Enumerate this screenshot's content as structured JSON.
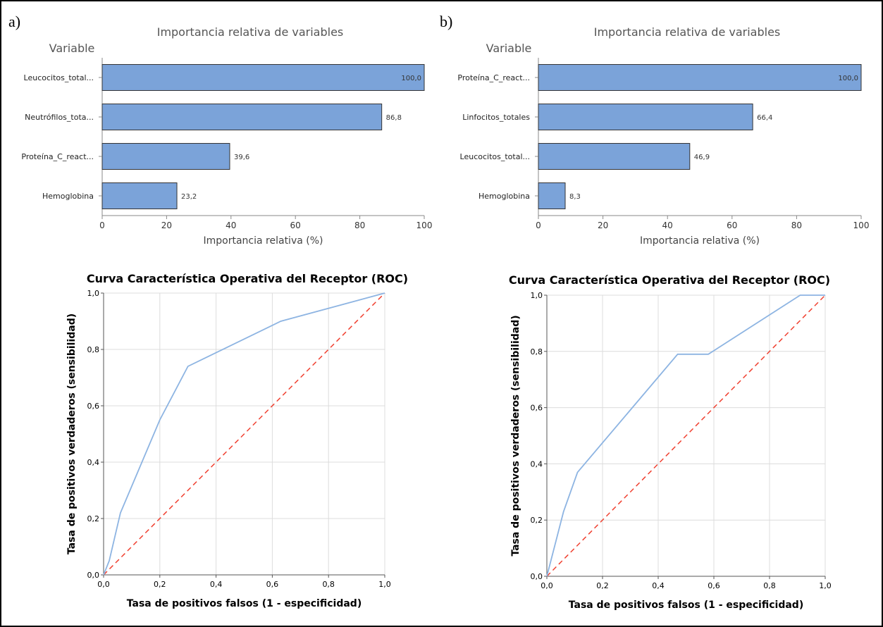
{
  "panels": [
    "a)",
    "b)"
  ],
  "colors": {
    "bar_fill": "#7ba3d9",
    "bar_stroke": "#333333",
    "roc_curve": "#8db4e2",
    "diagonal": "#f04030",
    "grid": "#dcdcdc"
  },
  "chart_data": [
    {
      "type": "bar",
      "orientation": "horizontal",
      "title": "Importancia relativa de variables",
      "ylabel": "Variable",
      "xlabel": "Importancia relativa (%)",
      "categories": [
        "Leucocitos_total...",
        "Neutrófilos_tota...",
        "Proteína_C_react...",
        "Hemoglobina"
      ],
      "values": [
        100.0,
        86.8,
        39.6,
        23.2
      ],
      "value_labels": [
        "100,0",
        "86,8",
        "39,6",
        "23,2"
      ],
      "xlim": [
        0,
        100
      ],
      "xticks": [
        "0",
        "20",
        "40",
        "60",
        "80",
        "100"
      ]
    },
    {
      "type": "bar",
      "orientation": "horizontal",
      "title": "Importancia relativa de variables",
      "ylabel": "Variable",
      "xlabel": "Importancia relativa (%)",
      "categories": [
        "Proteína_C_react...",
        "Linfocitos_totales",
        "Leucocitos_total...",
        "Hemoglobina"
      ],
      "values": [
        100.0,
        66.4,
        46.9,
        8.3
      ],
      "value_labels": [
        "100,0",
        "66,4",
        "46,9",
        "8,3"
      ],
      "xlim": [
        0,
        100
      ],
      "xticks": [
        "0",
        "20",
        "40",
        "60",
        "80",
        "100"
      ]
    },
    {
      "type": "line",
      "title": "Curva Característica Operativa del Receptor (ROC)",
      "xlabel": "Tasa de positivos falsos (1 - especificidad)",
      "ylabel": "Tasa de positivos verdaderos (sensibilidad)",
      "xlim": [
        0,
        1
      ],
      "ylim": [
        0,
        1
      ],
      "ticks": [
        "0,0",
        "0,2",
        "0,4",
        "0,6",
        "0,8",
        "1,0"
      ],
      "grid": true,
      "series": [
        {
          "x": [
            0,
            0.02,
            0.06,
            0.2,
            0.3,
            0.63,
            1.0
          ],
          "y": [
            0,
            0.05,
            0.22,
            0.55,
            0.74,
            0.9,
            1.0
          ]
        },
        {
          "x": [
            0,
            1
          ],
          "y": [
            0,
            1
          ],
          "style": "dashed"
        }
      ]
    },
    {
      "type": "line",
      "title": "Curva Característica Operativa del Receptor (ROC)",
      "xlabel": "Tasa de positivos falsos (1 - especificidad)",
      "ylabel": "Tasa de positivos verdaderos (sensibilidad)",
      "xlim": [
        0,
        1
      ],
      "ylim": [
        0,
        1
      ],
      "ticks": [
        "0,0",
        "0,2",
        "0,4",
        "0,6",
        "0,8",
        "1,0"
      ],
      "grid": true,
      "series": [
        {
          "x": [
            0,
            0.06,
            0.11,
            0.47,
            0.58,
            0.91,
            1.0
          ],
          "y": [
            0,
            0.23,
            0.37,
            0.79,
            0.79,
            1.0,
            1.0
          ]
        },
        {
          "x": [
            0,
            1
          ],
          "y": [
            0,
            1
          ],
          "style": "dashed"
        }
      ]
    }
  ]
}
